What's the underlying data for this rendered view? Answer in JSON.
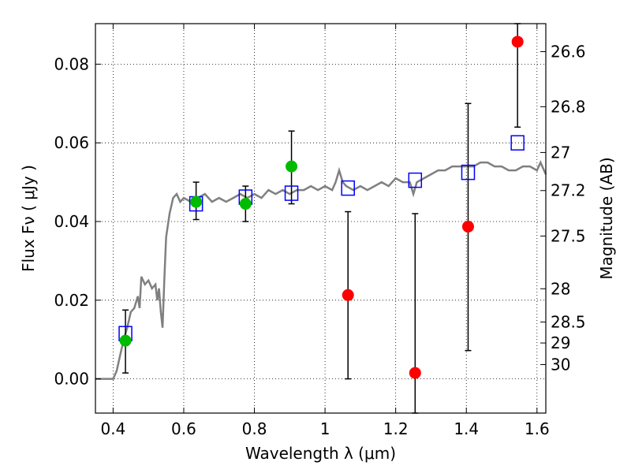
{
  "chart_data": {
    "type": "scatter",
    "xlabel": "Wavelength  λ (μm)",
    "ylabel": "Flux  Fν  ( μJy )",
    "ylabel_right": "Magnitude (AB)",
    "xlim": [
      0.35,
      1.625
    ],
    "ylim": [
      -0.0087,
      0.0903
    ],
    "grid": true,
    "x_ticks": [
      {
        "value": 0.4,
        "label": "0.4"
      },
      {
        "value": 0.6,
        "label": "0.6"
      },
      {
        "value": 0.8,
        "label": "0.8"
      },
      {
        "value": 1.0,
        "label": "1"
      },
      {
        "value": 1.2,
        "label": "1.2"
      },
      {
        "value": 1.4,
        "label": "1.4"
      },
      {
        "value": 1.6,
        "label": "1.6"
      }
    ],
    "y_ticks": [
      {
        "value": 0.0,
        "label": "0.00"
      },
      {
        "value": 0.02,
        "label": "0.02"
      },
      {
        "value": 0.04,
        "label": "0.04"
      },
      {
        "value": 0.06,
        "label": "0.06"
      },
      {
        "value": 0.08,
        "label": "0.08"
      }
    ],
    "right_ticks": [
      {
        "mag": 26.6,
        "label": "26.6"
      },
      {
        "mag": 26.8,
        "label": "26.8"
      },
      {
        "mag": 27.0,
        "label": "27"
      },
      {
        "mag": 27.2,
        "label": "27.2"
      },
      {
        "mag": 27.5,
        "label": "27.5"
      },
      {
        "mag": 28.0,
        "label": "28"
      },
      {
        "mag": 28.5,
        "label": "28.5"
      },
      {
        "mag": 29.0,
        "label": "29"
      },
      {
        "mag": 30.0,
        "label": "30"
      }
    ],
    "colors": {
      "template": "#808080",
      "model": "#0000ff",
      "detection": "#00bb00",
      "nondetection": "#ff0000",
      "errorbar": "#000000"
    },
    "template_spectrum": {
      "x": [
        0.35,
        0.4,
        0.41,
        0.42,
        0.43,
        0.44,
        0.45,
        0.46,
        0.47,
        0.475,
        0.48,
        0.49,
        0.5,
        0.51,
        0.52,
        0.525,
        0.53,
        0.535,
        0.54,
        0.545,
        0.55,
        0.56,
        0.57,
        0.58,
        0.59,
        0.6,
        0.62,
        0.64,
        0.66,
        0.68,
        0.7,
        0.72,
        0.74,
        0.76,
        0.78,
        0.8,
        0.82,
        0.84,
        0.86,
        0.88,
        0.9,
        0.92,
        0.94,
        0.96,
        0.98,
        1.0,
        1.02,
        1.03,
        1.04,
        1.05,
        1.06,
        1.08,
        1.1,
        1.12,
        1.14,
        1.16,
        1.18,
        1.2,
        1.22,
        1.24,
        1.25,
        1.26,
        1.28,
        1.3,
        1.32,
        1.34,
        1.36,
        1.38,
        1.4,
        1.42,
        1.44,
        1.46,
        1.48,
        1.5,
        1.52,
        1.54,
        1.56,
        1.58,
        1.6,
        1.61,
        1.625
      ],
      "y": [
        0.0,
        0.0,
        0.002,
        0.006,
        0.01,
        0.013,
        0.017,
        0.018,
        0.021,
        0.018,
        0.026,
        0.024,
        0.025,
        0.023,
        0.024,
        0.02,
        0.023,
        0.017,
        0.013,
        0.025,
        0.036,
        0.042,
        0.046,
        0.047,
        0.045,
        0.046,
        0.045,
        0.046,
        0.047,
        0.045,
        0.046,
        0.045,
        0.046,
        0.047,
        0.046,
        0.047,
        0.046,
        0.048,
        0.047,
        0.048,
        0.047,
        0.048,
        0.048,
        0.049,
        0.048,
        0.049,
        0.048,
        0.05,
        0.053,
        0.05,
        0.049,
        0.048,
        0.049,
        0.048,
        0.049,
        0.05,
        0.049,
        0.051,
        0.05,
        0.05,
        0.047,
        0.05,
        0.051,
        0.052,
        0.053,
        0.053,
        0.054,
        0.054,
        0.054,
        0.054,
        0.055,
        0.055,
        0.054,
        0.054,
        0.053,
        0.053,
        0.054,
        0.054,
        0.053,
        0.055,
        0.052
      ]
    },
    "model_points": {
      "x": [
        0.435,
        0.635,
        0.775,
        0.905,
        1.065,
        1.255,
        1.405,
        1.545
      ],
      "y": [
        0.0115,
        0.0445,
        0.0462,
        0.0472,
        0.0485,
        0.0505,
        0.0525,
        0.06
      ]
    },
    "detections": {
      "x": [
        0.435,
        0.635,
        0.775,
        0.905
      ],
      "y": [
        0.0097,
        0.045,
        0.0445,
        0.054
      ],
      "err_low": [
        0.0015,
        0.0405,
        0.04,
        0.0445
      ],
      "err_high": [
        0.0175,
        0.05,
        0.049,
        0.063
      ]
    },
    "nondetections": {
      "x": [
        1.065,
        1.255,
        1.405,
        1.545
      ],
      "y": [
        0.0213,
        0.0015,
        0.0387,
        0.0857
      ],
      "err_low": [
        0.0,
        -0.0087,
        0.0072,
        0.064
      ],
      "err_high": [
        0.0425,
        0.042,
        0.07,
        0.0903
      ]
    }
  }
}
